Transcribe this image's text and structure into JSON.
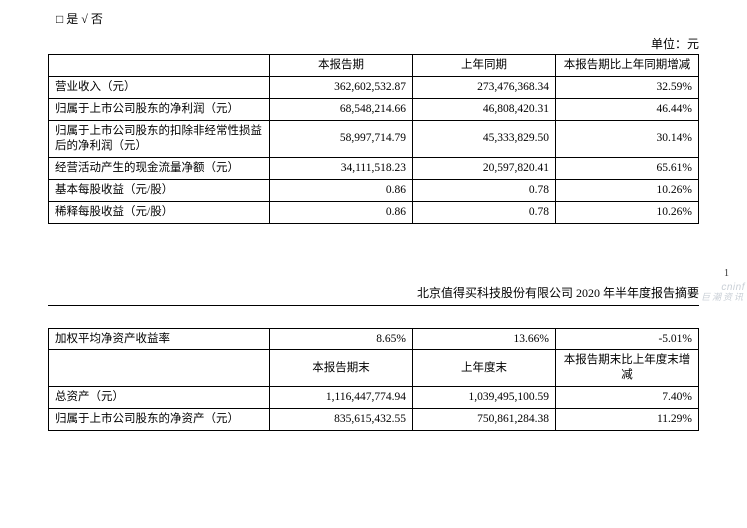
{
  "check_line": "□  是  √  否",
  "unit_label": "单位：元",
  "table1": {
    "headers": [
      "",
      "本报告期",
      "上年同期",
      "本报告期比上年同期增减"
    ],
    "rows": [
      {
        "label": "营业收入（元）",
        "cur": "362,602,532.87",
        "prev": "273,476,368.34",
        "chg": "32.59%"
      },
      {
        "label": "归属于上市公司股东的净利润（元）",
        "cur": "68,548,214.66",
        "prev": "46,808,420.31",
        "chg": "46.44%"
      },
      {
        "label": "归属于上市公司股东的扣除非经常性损益后的净利润（元）",
        "cur": "58,997,714.79",
        "prev": "45,333,829.50",
        "chg": "30.14%"
      },
      {
        "label": "经营活动产生的现金流量净额（元）",
        "cur": "34,111,518.23",
        "prev": "20,597,820.41",
        "chg": "65.61%"
      },
      {
        "label": "基本每股收益（元/股）",
        "cur": "0.86",
        "prev": "0.78",
        "chg": "10.26%"
      },
      {
        "label": "稀释每股收益（元/股）",
        "cur": "0.86",
        "prev": "0.78",
        "chg": "10.26%"
      }
    ]
  },
  "page_number": "1",
  "watermark": {
    "en": "cninf",
    "cn": "巨潮资讯"
  },
  "subtitle": "北京值得买科技股份有限公司 2020 年半年度报告摘要",
  "table2a": {
    "row": {
      "label": "加权平均净资产收益率",
      "cur": "8.65%",
      "prev": "13.66%",
      "chg": "-5.01%"
    }
  },
  "table2b": {
    "headers": [
      "",
      "本报告期末",
      "上年度末",
      "本报告期末比上年度末增减"
    ],
    "rows": [
      {
        "label": "总资产（元）",
        "cur": "1,116,447,774.94",
        "prev": "1,039,495,100.59",
        "chg": "7.40%"
      },
      {
        "label": "归属于上市公司股东的净资产（元）",
        "cur": "835,615,432.55",
        "prev": "750,861,284.38",
        "chg": "11.29%"
      }
    ]
  }
}
